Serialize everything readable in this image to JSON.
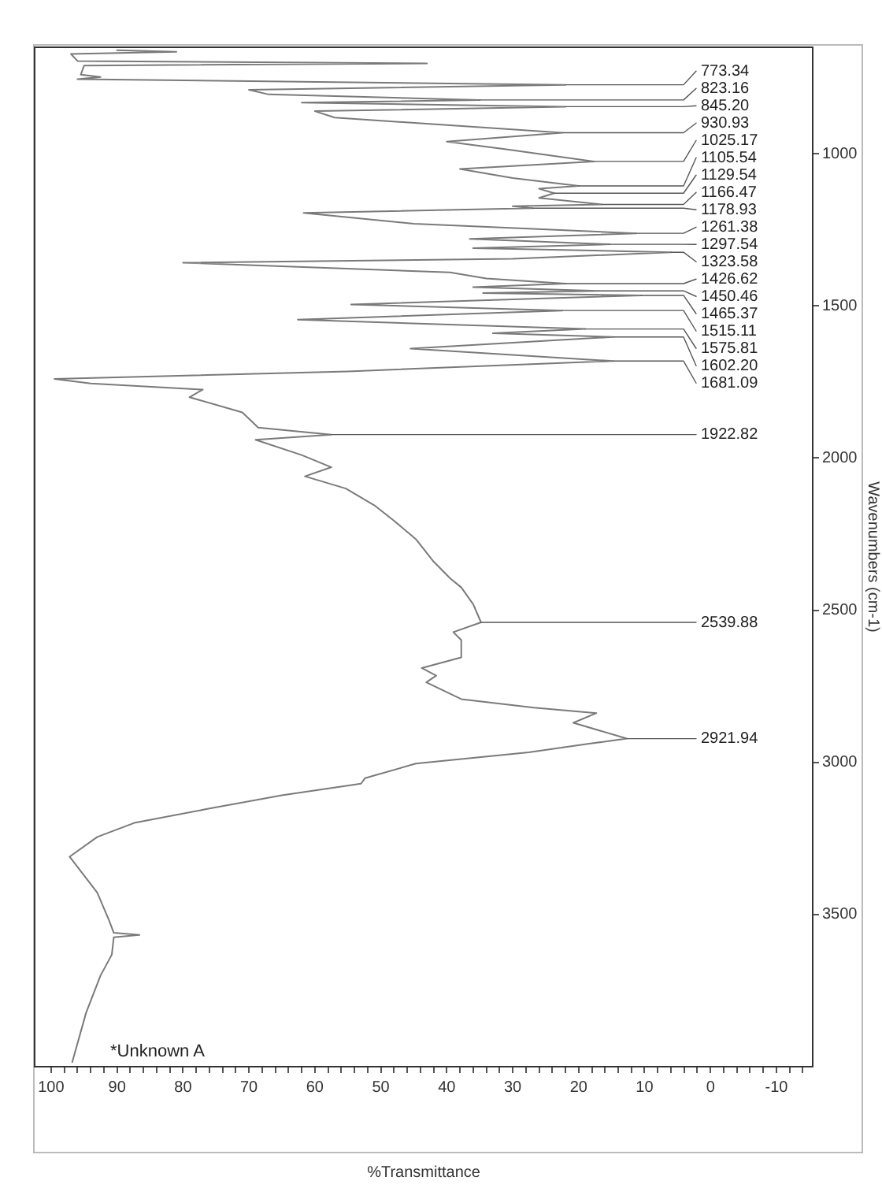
{
  "chart_data": {
    "type": "line",
    "orientation": "horizontal",
    "title": "*Unknown A",
    "ylabel": "Wavenumbers (cm-1)",
    "xlabel": "%Transmittance",
    "marker": "none",
    "ylim": [
      4000,
      650
    ],
    "yticks": [
      1000,
      1500,
      2000,
      2500,
      3000,
      3500
    ],
    "xlim": [
      102.5,
      -15.5
    ],
    "xticks": [
      {
        "value": -14,
        "label": null
      },
      {
        "value": -12,
        "label": null
      },
      -10,
      {
        "value": -8,
        "label": null
      },
      {
        "value": -6,
        "label": null
      },
      {
        "value": -4,
        "label": null
      },
      {
        "value": -2,
        "label": null
      },
      0,
      {
        "value": 2,
        "label": null
      },
      {
        "value": 4,
        "label": null
      },
      {
        "value": 6,
        "label": null
      },
      {
        "value": 8,
        "label": null
      },
      10,
      {
        "value": 12,
        "label": null
      },
      {
        "value": 14,
        "label": null
      },
      {
        "value": 16,
        "label": null
      },
      {
        "value": 18,
        "label": null
      },
      20,
      {
        "value": 22,
        "label": null
      },
      {
        "value": 24,
        "label": null
      },
      {
        "value": 26,
        "label": null
      },
      {
        "value": 28,
        "label": null
      },
      30,
      {
        "value": 32,
        "label": null
      },
      {
        "value": 34,
        "label": null
      },
      {
        "value": 36,
        "label": null
      },
      {
        "value": 38,
        "label": null
      },
      40,
      {
        "value": 42,
        "label": null
      },
      {
        "value": 44,
        "label": null
      },
      {
        "value": 46,
        "label": null
      },
      {
        "value": 48,
        "label": null
      },
      50,
      {
        "value": 52,
        "label": null
      },
      {
        "value": 54,
        "label": null
      },
      {
        "value": 56,
        "label": null
      },
      {
        "value": 58,
        "label": null
      },
      60,
      {
        "value": 62,
        "label": null
      },
      {
        "value": 64,
        "label": null
      },
      {
        "value": 66,
        "label": null
      },
      {
        "value": 68,
        "label": null
      },
      70,
      {
        "value": 72,
        "label": null
      },
      {
        "value": 74,
        "label": null
      },
      {
        "value": 76,
        "label": null
      },
      {
        "value": 78,
        "label": null
      },
      80,
      {
        "value": 82,
        "label": null
      },
      {
        "value": 84,
        "label": null
      },
      {
        "value": 86,
        "label": null
      },
      {
        "value": 88,
        "label": null
      },
      90,
      {
        "value": 92,
        "label": null
      },
      {
        "value": 94,
        "label": null
      },
      {
        "value": 96,
        "label": null
      },
      {
        "value": 98,
        "label": null
      },
      100
    ],
    "series": [
      {
        "color": "#7a7a7a",
        "x": [
          660,
          665,
          672,
          695,
          703,
          710,
          740,
          748,
          755,
          773.34,
          790,
          805,
          823.16,
          832,
          845.2,
          860,
          881,
          930.93,
          960,
          985,
          1025.17,
          1050,
          1080,
          1105.54,
          1115,
          1129.54,
          1145,
          1166.47,
          1172,
          1178.93,
          1194,
          1230,
          1261.38,
          1280,
          1297.54,
          1310,
          1323.58,
          1345,
          1358,
          1390,
          1410,
          1426.62,
          1438,
          1450.46,
          1458,
          1465.37,
          1495,
          1515.11,
          1545,
          1575.81,
          1590,
          1602.2,
          1640,
          1681.09,
          1715,
          1740,
          1755,
          1775,
          1800,
          1850,
          1900,
          1922.82,
          1940,
          1990,
          2030,
          2060,
          2100,
          2155,
          2206,
          2266,
          2340,
          2395,
          2425,
          2480,
          2539.88,
          2572,
          2598,
          2655,
          2690,
          2715,
          2737,
          2792,
          2820,
          2838,
          2870,
          2921.94,
          2938,
          2967,
          3004,
          3052,
          3070,
          3108,
          3153,
          3199,
          3245,
          3310,
          3428,
          3520,
          3560,
          3567,
          3575,
          3632,
          3700,
          3823,
          3985
        ],
        "values": [
          90,
          81,
          97,
          96,
          43,
          95,
          95.5,
          92.5,
          96,
          22,
          70,
          67,
          35,
          62,
          22,
          60,
          57,
          22.5,
          40,
          31,
          17.7,
          38,
          30,
          20,
          26,
          23.7,
          26,
          16.5,
          30,
          27,
          61.7,
          45,
          11.3,
          36.5,
          15.3,
          36,
          6,
          30,
          80,
          39.5,
          34,
          22,
          36,
          17,
          34.5,
          10.5,
          54.5,
          22.5,
          62.6,
          19,
          33,
          14.8,
          45.5,
          14.8,
          55,
          99.5,
          94,
          77,
          79,
          71,
          68.6,
          57.5,
          69,
          62,
          57.5,
          61.5,
          55.3,
          51,
          48,
          44.7,
          42,
          39.5,
          37.8,
          36,
          34.8,
          39,
          37.8,
          37.8,
          43.8,
          41.6,
          43.1,
          37.8,
          26.8,
          17.3,
          20.8,
          12.7,
          18.2,
          27.6,
          44.7,
          52.4,
          53,
          65,
          76.3,
          87.4,
          93,
          97.2,
          93,
          91.2,
          90.5,
          86.6,
          90.5,
          90.8,
          92.5,
          94.7,
          96.8
        ]
      }
    ],
    "annotations": [
      {
        "text": "773.34",
        "y": 773.34,
        "x": 22
      },
      {
        "text": "823.16",
        "y": 823.16,
        "x": 35
      },
      {
        "text": "845.20",
        "y": 845.2,
        "x": 22
      },
      {
        "text": "930.93",
        "y": 930.93,
        "x": 22.5
      },
      {
        "text": "1025.17",
        "y": 1025.17,
        "x": 17.7
      },
      {
        "text": "1105.54",
        "y": 1105.54,
        "x": 20
      },
      {
        "text": "1129.54",
        "y": 1129.54,
        "x": 23.7
      },
      {
        "text": "1166.47",
        "y": 1166.47,
        "x": 16.5
      },
      {
        "text": "1178.93",
        "y": 1178.93,
        "x": 27
      },
      {
        "text": "1261.38",
        "y": 1261.38,
        "x": 11.3
      },
      {
        "text": "1297.54",
        "y": 1297.54,
        "x": 15.3
      },
      {
        "text": "1323.58",
        "y": 1323.58,
        "x": 6
      },
      {
        "text": "1426.62",
        "y": 1426.62,
        "x": 22
      },
      {
        "text": "1450.46",
        "y": 1450.46,
        "x": 17
      },
      {
        "text": "1465.37",
        "y": 1465.37,
        "x": 10.5
      },
      {
        "text": "1515.11",
        "y": 1515.11,
        "x": 22.5
      },
      {
        "text": "1575.81",
        "y": 1575.81,
        "x": 19
      },
      {
        "text": "1602.20",
        "y": 1602.2,
        "x": 14.8
      },
      {
        "text": "1681.09",
        "y": 1681.09,
        "x": 14.8
      },
      {
        "text": "1922.82",
        "y": 1922.82,
        "x": 57.5
      },
      {
        "text": "2539.88",
        "y": 2539.88,
        "x": 34.8
      },
      {
        "text": "2921.94",
        "y": 2921.94,
        "x": 12.7
      }
    ]
  }
}
